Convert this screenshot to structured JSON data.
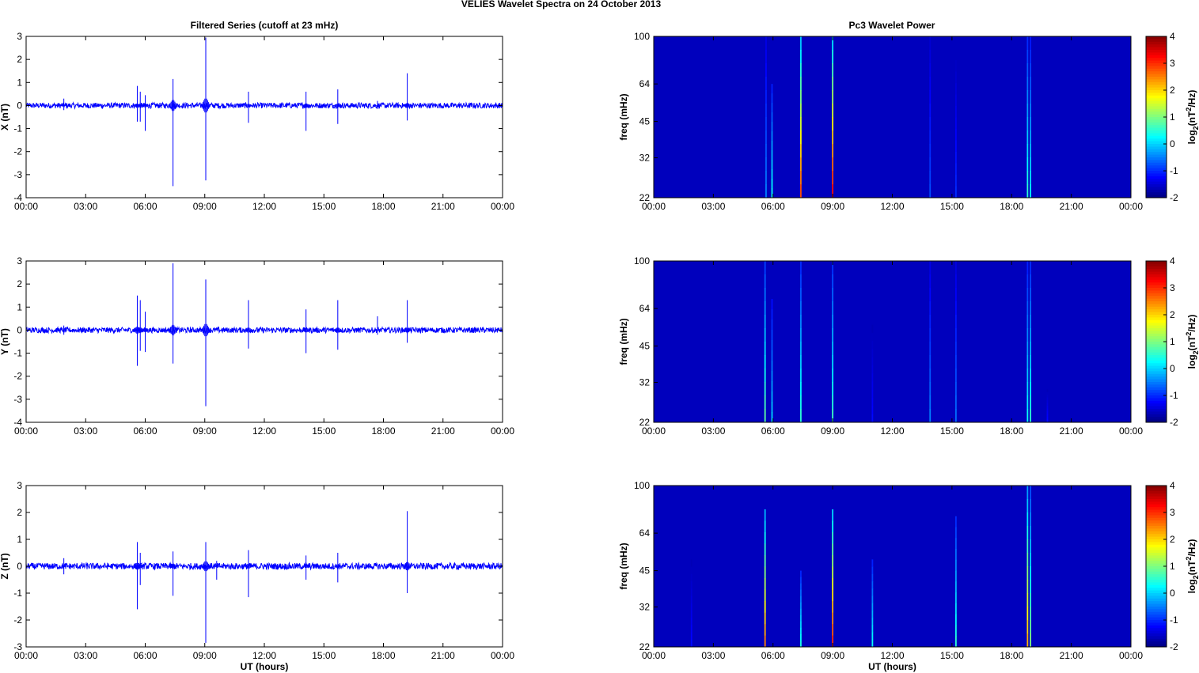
{
  "figure_title": "VELIES Wavelet Spectra on 24 October   2013",
  "left_title": "Filtered Series (cutoff at 23 mHz)",
  "right_title": "Pc3 Wavelet Power",
  "colors": {
    "trace": "#0000ff",
    "background": "#00008f",
    "axes": "#000000"
  },
  "chart_data": [
    {
      "type": "line",
      "name": "X",
      "ylabel": "X (nT)",
      "xlabel": "",
      "ylim": [
        -4,
        3
      ],
      "yticks": [
        "3",
        "2",
        "1",
        "0",
        "-1",
        "-2",
        "-3",
        "-4"
      ],
      "ytick_values": [
        3,
        2,
        1,
        0,
        -1,
        -2,
        -3,
        -4
      ],
      "x_range_hours": [
        0,
        24
      ],
      "xticks": [
        "00:00",
        "03:00",
        "06:00",
        "09:00",
        "12:00",
        "15:00",
        "18:00",
        "21:00",
        "00:00"
      ],
      "noise_amplitude_nT": 0.12,
      "spikes": [
        {
          "t": 1.9,
          "ymax": 0.3,
          "ymin": -0.2
        },
        {
          "t": 5.6,
          "ymax": 0.85,
          "ymin": -0.7
        },
        {
          "t": 5.75,
          "ymax": 0.6,
          "ymin": -0.7
        },
        {
          "t": 6.0,
          "ymax": 0.45,
          "ymin": -1.1
        },
        {
          "t": 7.4,
          "ymax": 1.15,
          "ymin": -3.5
        },
        {
          "t": 9.05,
          "ymax": 2.95,
          "ymin": -3.25
        },
        {
          "t": 11.2,
          "ymax": 0.6,
          "ymin": -0.75
        },
        {
          "t": 14.1,
          "ymax": 0.6,
          "ymin": -1.1
        },
        {
          "t": 15.7,
          "ymax": 0.7,
          "ymin": -0.8
        },
        {
          "t": 17.7,
          "ymax": 0.2,
          "ymin": -0.15
        },
        {
          "t": 19.2,
          "ymax": 1.4,
          "ymin": -0.65
        }
      ]
    },
    {
      "type": "line",
      "name": "Y",
      "ylabel": "Y (nT)",
      "xlabel": "",
      "ylim": [
        -4,
        3
      ],
      "yticks": [
        "3",
        "2",
        "1",
        "0",
        "-1",
        "-2",
        "-3",
        "-4"
      ],
      "ytick_values": [
        3,
        2,
        1,
        0,
        -1,
        -2,
        -3,
        -4
      ],
      "x_range_hours": [
        0,
        24
      ],
      "xticks": [
        "00:00",
        "03:00",
        "06:00",
        "09:00",
        "12:00",
        "15:00",
        "18:00",
        "21:00",
        "00:00"
      ],
      "noise_amplitude_nT": 0.12,
      "spikes": [
        {
          "t": 1.9,
          "ymax": 0.2,
          "ymin": -0.2
        },
        {
          "t": 5.6,
          "ymax": 1.5,
          "ymin": -1.55
        },
        {
          "t": 5.75,
          "ymax": 1.3,
          "ymin": -0.9
        },
        {
          "t": 6.0,
          "ymax": 0.8,
          "ymin": -0.95
        },
        {
          "t": 7.4,
          "ymax": 2.9,
          "ymin": -1.45
        },
        {
          "t": 9.05,
          "ymax": 2.2,
          "ymin": -3.3
        },
        {
          "t": 11.2,
          "ymax": 1.3,
          "ymin": -0.8
        },
        {
          "t": 14.1,
          "ymax": 0.9,
          "ymin": -1.0
        },
        {
          "t": 15.7,
          "ymax": 1.3,
          "ymin": -0.85
        },
        {
          "t": 17.7,
          "ymax": 0.6,
          "ymin": -0.2
        },
        {
          "t": 19.2,
          "ymax": 1.3,
          "ymin": -0.55
        }
      ]
    },
    {
      "type": "line",
      "name": "Z",
      "ylabel": "Z (nT)",
      "xlabel": "UT (hours)",
      "ylim": [
        -3,
        3
      ],
      "yticks": [
        "3",
        "2",
        "1",
        "0",
        "-1",
        "-2",
        "-3"
      ],
      "ytick_values": [
        3,
        2,
        1,
        0,
        -1,
        -2,
        -3
      ],
      "x_range_hours": [
        0,
        24
      ],
      "xticks": [
        "00:00",
        "03:00",
        "06:00",
        "09:00",
        "12:00",
        "15:00",
        "18:00",
        "21:00",
        "00:00"
      ],
      "noise_amplitude_nT": 0.12,
      "spikes": [
        {
          "t": 1.9,
          "ymax": 0.3,
          "ymin": -0.3
        },
        {
          "t": 5.6,
          "ymax": 0.9,
          "ymin": -1.6
        },
        {
          "t": 5.75,
          "ymax": 0.5,
          "ymin": -0.7
        },
        {
          "t": 7.4,
          "ymax": 0.55,
          "ymin": -1.1
        },
        {
          "t": 9.05,
          "ymax": 0.9,
          "ymin": -2.85
        },
        {
          "t": 9.6,
          "ymax": 0.2,
          "ymin": -0.5
        },
        {
          "t": 11.2,
          "ymax": 0.6,
          "ymin": -1.15
        },
        {
          "t": 14.1,
          "ymax": 0.4,
          "ymin": -0.5
        },
        {
          "t": 15.7,
          "ymax": 0.5,
          "ymin": -0.6
        },
        {
          "t": 19.2,
          "ymax": 2.05,
          "ymin": -1.0
        }
      ]
    },
    {
      "type": "heatmap",
      "ylabel": "freq (mHz)",
      "xlabel": "",
      "x_range_hours": [
        0,
        24
      ],
      "xticks": [
        "00:00",
        "03:00",
        "06:00",
        "09:00",
        "12:00",
        "15:00",
        "18:00",
        "21:00",
        "00:00"
      ],
      "ylim_mHz": [
        22,
        100
      ],
      "y_scale": "log",
      "yticks": [
        "100",
        "64",
        "45",
        "32",
        "22"
      ],
      "ytick_values": [
        100,
        64,
        45,
        32,
        22
      ],
      "colorbar_label": "log2(nT2/Hz)",
      "colorbar_ticks": [
        "4",
        "3",
        "2",
        "1",
        "0",
        "-1",
        "-2"
      ],
      "colorbar_range": [
        -2,
        4
      ],
      "background_value": -2,
      "streaks": [
        {
          "t": 5.65,
          "level": -0.5,
          "f_top": 100
        },
        {
          "t": 5.95,
          "level": 0.3,
          "f_top": 64
        },
        {
          "t": 7.4,
          "level": 2.8,
          "f_top": 100
        },
        {
          "t": 9.0,
          "level": 3.2,
          "f_top": 100
        },
        {
          "t": 13.9,
          "level": -0.8,
          "f_top": 100
        },
        {
          "t": 15.2,
          "level": -1.0,
          "f_top": 80
        },
        {
          "t": 18.8,
          "level": 0.5,
          "f_top": 100
        },
        {
          "t": 18.95,
          "level": 0.2,
          "f_top": 100
        }
      ]
    },
    {
      "type": "heatmap",
      "ylabel": "freq (mHz)",
      "xlabel": "",
      "x_range_hours": [
        0,
        24
      ],
      "xticks": [
        "00:00",
        "03:00",
        "06:00",
        "09:00",
        "12:00",
        "15:00",
        "18:00",
        "21:00",
        "00:00"
      ],
      "ylim_mHz": [
        22,
        100
      ],
      "y_scale": "log",
      "yticks": [
        "100",
        "64",
        "45",
        "32",
        "22"
      ],
      "ytick_values": [
        100,
        64,
        45,
        32,
        22
      ],
      "colorbar_label": "log2(nT2/Hz)",
      "colorbar_ticks": [
        "4",
        "3",
        "2",
        "1",
        "0",
        "-1",
        "-2"
      ],
      "colorbar_range": [
        -2,
        4
      ],
      "background_value": -2,
      "streaks": [
        {
          "t": 5.6,
          "level": 0.8,
          "f_top": 100
        },
        {
          "t": 5.95,
          "level": 0.0,
          "f_top": 70
        },
        {
          "t": 7.4,
          "level": 0.5,
          "f_top": 100
        },
        {
          "t": 9.0,
          "level": 0.6,
          "f_top": 100
        },
        {
          "t": 11.0,
          "level": -1.2,
          "f_top": 55
        },
        {
          "t": 13.9,
          "level": -0.5,
          "f_top": 100
        },
        {
          "t": 15.2,
          "level": -0.6,
          "f_top": 100
        },
        {
          "t": 18.8,
          "level": 0.3,
          "f_top": 100
        },
        {
          "t": 18.95,
          "level": 0.5,
          "f_top": 100
        },
        {
          "t": 19.8,
          "level": -1.2,
          "f_top": 30
        }
      ]
    },
    {
      "type": "heatmap",
      "ylabel": "freq (mHz)",
      "xlabel": "UT (hours)",
      "x_range_hours": [
        0,
        24
      ],
      "xticks": [
        "00:00",
        "03:00",
        "06:00",
        "09:00",
        "12:00",
        "15:00",
        "18:00",
        "21:00",
        "00:00"
      ],
      "ylim_mHz": [
        22,
        100
      ],
      "y_scale": "log",
      "yticks": [
        "100",
        "64",
        "45",
        "32",
        "22"
      ],
      "ytick_values": [
        100,
        64,
        45,
        32,
        22
      ],
      "colorbar_label": "log2(nT2/Hz)",
      "colorbar_ticks": [
        "4",
        "3",
        "2",
        "1",
        "0",
        "-1",
        "-2"
      ],
      "colorbar_range": [
        -2,
        4
      ],
      "background_value": -2,
      "streaks": [
        {
          "t": 1.9,
          "level": -1.2,
          "f_top": 50
        },
        {
          "t": 5.6,
          "level": 2.5,
          "f_top": 80
        },
        {
          "t": 7.4,
          "level": 0.4,
          "f_top": 45
        },
        {
          "t": 9.0,
          "level": 3.0,
          "f_top": 80
        },
        {
          "t": 11.0,
          "level": 0.3,
          "f_top": 50
        },
        {
          "t": 15.2,
          "level": 0.5,
          "f_top": 75
        },
        {
          "t": 18.8,
          "level": 2.2,
          "f_top": 100
        },
        {
          "t": 18.95,
          "level": 1.0,
          "f_top": 100
        }
      ]
    }
  ]
}
